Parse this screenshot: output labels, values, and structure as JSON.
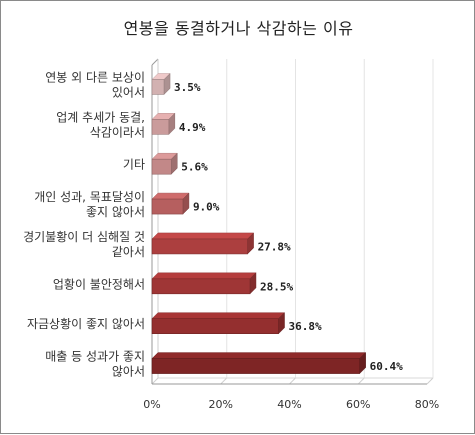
{
  "chart_data": {
    "type": "bar",
    "orientation": "horizontal",
    "style": "3d",
    "title": "연봉을 동결하거나 삭감하는 이유",
    "categories": [
      [
        "연봉 외 다른 보상이",
        "있어서"
      ],
      [
        "업계 추세가 동결,",
        "삭감이라서"
      ],
      [
        "기타"
      ],
      [
        "개인 성과, 목표달성이",
        "좋지 않아서"
      ],
      [
        "경기불황이 더 심해질 것",
        "같아서"
      ],
      [
        "업황이 불안정해서"
      ],
      [
        "자금상황이 좋지 않아서"
      ],
      [
        "매출 등 성과가 좋지",
        "않아서"
      ]
    ],
    "values": [
      3.5,
      4.9,
      5.6,
      9.0,
      27.8,
      28.5,
      36.8,
      60.4
    ],
    "value_labels": [
      "3.5%",
      "4.9%",
      "5.6%",
      "9.0%",
      "27.8%",
      "28.5%",
      "36.8%",
      "60.4%"
    ],
    "xlim": [
      0,
      80
    ],
    "xticks": [
      0,
      20,
      40,
      60,
      80
    ],
    "xtick_labels": [
      "0%",
      "20%",
      "40%",
      "60%",
      "80%"
    ],
    "grid": true,
    "bar_colors": [
      "#efc9c9",
      "#e6b0b0",
      "#dc9a9a",
      "#cf6c6c",
      "#c44848",
      "#b53d3d",
      "#a83535",
      "#8f2a2a"
    ]
  }
}
